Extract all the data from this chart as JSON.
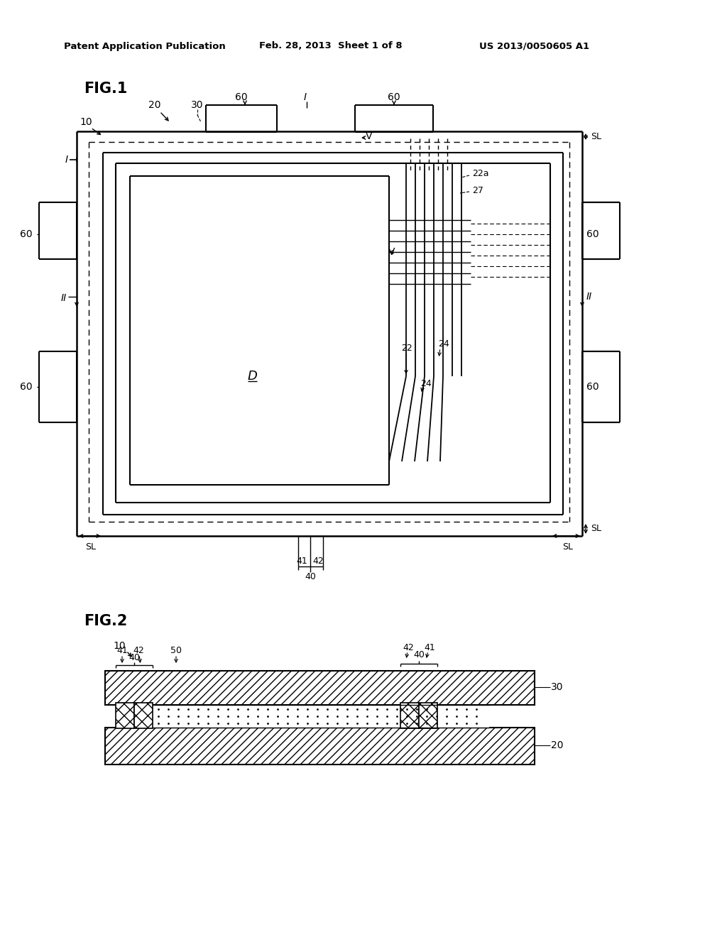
{
  "bg_color": "#ffffff",
  "fig_width": 10.24,
  "fig_height": 13.2,
  "header_text1": "Patent Application Publication",
  "header_text2": "Feb. 28, 2013  Sheet 1 of 8",
  "header_text3": "US 2013/0050605 A1"
}
